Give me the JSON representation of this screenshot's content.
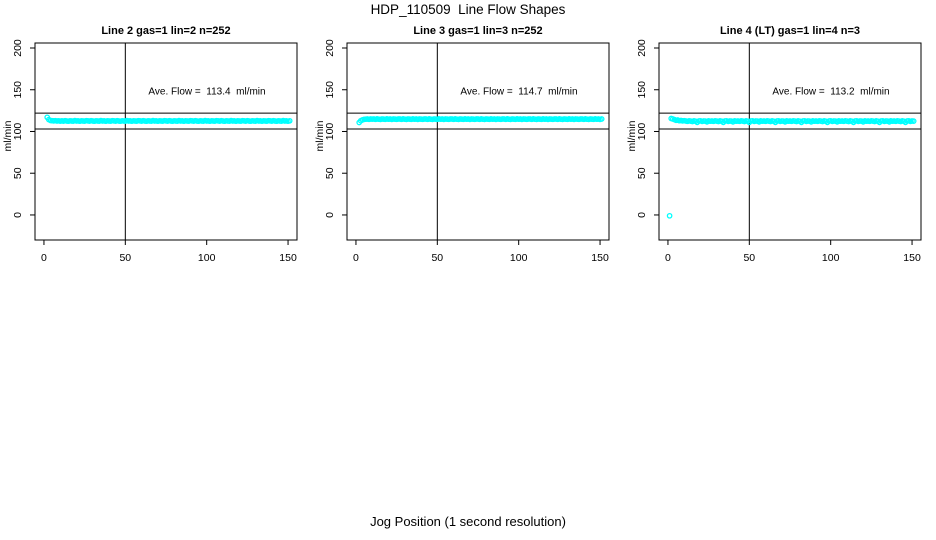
{
  "title": "HDP_110509  Line Flow Shapes",
  "xlabel": "Jog Position (1 second resolution)",
  "colors": {
    "marker": "#00FFFF",
    "axis": "#000000",
    "background": "#FFFFFF"
  },
  "chart_data": [
    {
      "type": "scatter",
      "title": "Line 2 gas=1 lin=2 n=252",
      "gas": 1,
      "lin": 2,
      "n": 252,
      "annotation": "Ave. Flow =  113.4  ml/min",
      "ave_flow_ml_min": 113.4,
      "ylabel": "ml/min",
      "xticks": [
        0,
        50,
        100,
        150
      ],
      "yticks": [
        0,
        50,
        100,
        150,
        200
      ],
      "xlim": [
        -5.5,
        155.5
      ],
      "ylim": [
        -30,
        206
      ],
      "vline_x": 50,
      "hlines_y": [
        122,
        103
      ],
      "marker_color": "#00FFFF",
      "x0": 2,
      "dx": 1,
      "y": [
        117,
        114.2,
        113.2,
        112.9,
        112.7,
        112.9,
        112.5,
        112.8,
        112.4,
        112.7,
        112.4,
        112.9,
        112.5,
        112.3,
        112.8,
        112.6,
        112.4,
        113,
        112.5,
        112.7,
        112.3,
        112.8,
        112.6,
        112.4,
        112.9,
        112.7,
        112.4,
        112.9,
        112.5,
        112.3,
        112.8,
        112.6,
        112.4,
        113,
        112.5,
        112.7,
        112.3,
        112.8,
        112.6,
        112.4,
        112.9,
        112.7,
        112.4,
        112.9,
        112.5,
        112.3,
        112.8,
        112.6,
        112.4,
        113,
        112.5,
        112.7,
        112.3,
        112.8,
        112.6,
        112.4,
        112.9,
        112.7,
        112.4,
        112.9,
        112.5,
        112.3,
        112.8,
        112.6,
        112.4,
        113,
        112.5,
        112.7,
        112.3,
        112.8,
        112.6,
        112.4,
        112.9,
        112.7,
        112.4,
        112.9,
        112.5,
        112.3,
        112.8,
        112.6,
        112.4,
        113,
        112.5,
        112.7,
        112.3,
        112.8,
        112.6,
        112.4,
        112.9,
        112.7,
        112.4,
        112.9,
        112.5,
        112.3,
        112.8,
        112.6,
        112.4,
        113,
        112.5,
        112.7,
        112.3,
        112.8,
        112.6,
        112.4,
        112.9,
        112.7,
        112.4,
        112.9,
        112.5,
        112.3,
        112.8,
        112.6,
        112.4,
        113,
        112.5,
        112.7,
        112.3,
        112.8,
        112.6,
        112.4,
        112.9,
        112.7,
        112.4,
        112.9,
        112.5,
        112.3,
        112.8,
        112.6,
        112.4,
        113,
        112.5,
        112.7,
        112.3,
        112.8,
        112.6,
        112.4,
        112.9,
        112.7,
        112.4,
        112.9,
        112.5,
        112.3,
        112.8,
        112.6,
        112.4,
        113,
        112.5,
        112.7,
        112.3,
        112.8
      ],
      "extra_points": []
    },
    {
      "type": "scatter",
      "title": "Line 3 gas=1 lin=3 n=252",
      "gas": 1,
      "lin": 3,
      "n": 252,
      "annotation": "Ave. Flow =  114.7  ml/min",
      "ave_flow_ml_min": 114.7,
      "ylabel": "ml/min",
      "xticks": [
        0,
        50,
        100,
        150
      ],
      "yticks": [
        0,
        50,
        100,
        150,
        200
      ],
      "xlim": [
        -5.5,
        155.5
      ],
      "ylim": [
        -30,
        206
      ],
      "vline_x": 50,
      "hlines_y": [
        122,
        103
      ],
      "marker_color": "#00FFFF",
      "x0": 2,
      "dx": 1,
      "y": [
        110.8,
        112.9,
        114,
        114.5,
        114.7,
        114.9,
        114.6,
        115,
        114.8,
        114.9,
        114.6,
        115.1,
        114.7,
        114.5,
        115,
        114.8,
        114.6,
        115.1,
        114.7,
        114.9,
        114.5,
        115,
        114.8,
        114.6,
        114.9,
        114.9,
        114.6,
        115.1,
        114.7,
        114.5,
        115,
        114.8,
        114.6,
        115.1,
        114.7,
        114.9,
        114.5,
        115,
        114.8,
        114.6,
        114.9,
        114.9,
        114.6,
        115.1,
        114.7,
        114.5,
        115,
        114.8,
        114.6,
        115.1,
        114.7,
        114.9,
        114.5,
        115,
        114.8,
        114.6,
        114.9,
        114.9,
        114.6,
        115.1,
        114.7,
        114.5,
        115,
        114.8,
        114.6,
        115.1,
        114.7,
        114.9,
        114.5,
        115,
        114.8,
        114.6,
        114.9,
        114.9,
        114.6,
        115.1,
        114.7,
        114.5,
        115,
        114.8,
        114.6,
        115.1,
        114.7,
        114.9,
        114.5,
        115,
        114.8,
        114.6,
        114.9,
        114.9,
        114.6,
        115.1,
        114.7,
        114.5,
        115,
        114.8,
        114.6,
        115.1,
        114.7,
        114.9,
        114.5,
        115,
        114.8,
        114.6,
        114.9,
        114.9,
        114.6,
        115.1,
        114.7,
        114.5,
        115,
        114.8,
        114.6,
        115.1,
        114.7,
        114.9,
        114.5,
        115,
        114.8,
        114.6,
        114.9,
        114.9,
        114.6,
        115.1,
        114.7,
        114.5,
        115,
        114.8,
        114.6,
        115.1,
        114.7,
        114.9,
        114.5,
        115,
        114.8,
        114.6,
        114.9,
        114.9,
        114.6,
        115.1,
        114.7,
        114.5,
        115,
        114.8,
        114.6,
        115.1,
        114.7,
        114.9,
        114.5,
        115
      ],
      "extra_points": []
    },
    {
      "type": "scatter",
      "title": "Line 4 (LT) gas=1 lin=4 n=3",
      "gas": 1,
      "lin": 4,
      "n": 3,
      "annotation": "Ave. Flow =  113.2  ml/min",
      "ave_flow_ml_min": 113.2,
      "ylabel": "ml/min",
      "xticks": [
        0,
        50,
        100,
        150
      ],
      "yticks": [
        0,
        50,
        100,
        150,
        200
      ],
      "xlim": [
        -5.5,
        155.5
      ],
      "ylim": [
        -30,
        206
      ],
      "vline_x": 50,
      "hlines_y": [
        122,
        103
      ],
      "marker_color": "#00FFFF",
      "x0": 2,
      "dx": 1,
      "y": [
        115.5,
        115,
        114.2,
        113.4,
        113.8,
        112.9,
        113.2,
        112.7,
        112.9,
        112.6,
        112.2,
        112.8,
        112.4,
        111.9,
        112.7,
        112.3,
        110.9,
        112.5,
        112.8,
        112.1,
        112.6,
        112.4,
        111.5,
        112.7,
        112.3,
        112.6,
        112.2,
        112.8,
        112.4,
        111.9,
        112.7,
        112.3,
        110.9,
        112.5,
        112.8,
        112.1,
        112.6,
        112.4,
        111.5,
        112.7,
        112.3,
        112.6,
        112.2,
        112.8,
        112.4,
        111.9,
        112.7,
        112.3,
        110.9,
        112.5,
        112.8,
        112.1,
        112.6,
        112.4,
        111.5,
        112.7,
        112.3,
        112.6,
        112.2,
        112.8,
        112.4,
        111.9,
        112.7,
        112.3,
        110.9,
        112.5,
        112.8,
        112.1,
        112.6,
        112.4,
        111.5,
        112.7,
        112.3,
        112.6,
        112.2,
        112.8,
        112.4,
        111.9,
        112.7,
        112.3,
        110.9,
        112.5,
        112.8,
        112.1,
        112.6,
        112.4,
        111.5,
        112.7,
        112.3,
        112.6,
        112.2,
        112.8,
        112.4,
        111.9,
        112.7,
        112.3,
        110.9,
        112.5,
        112.8,
        112.1,
        112.6,
        112.4,
        111.5,
        112.7,
        112.3,
        112.6,
        112.2,
        112.8,
        112.4,
        111.9,
        112.7,
        112.3,
        110.9,
        112.5,
        112.8,
        112.1,
        112.6,
        112.4,
        111.5,
        112.7,
        112.3,
        112.6,
        112.2,
        112.8,
        112.4,
        111.9,
        112.7,
        112.3,
        110.9,
        112.5,
        112.8,
        112.1,
        112.6,
        112.4,
        111.5,
        112.7,
        112.3,
        112.6,
        112.2,
        112.8,
        112.4,
        111.9,
        112.7,
        112.3,
        110.9,
        112.5,
        112.8,
        112.1,
        112.6,
        112.4
      ],
      "extra_points": [
        [
          1,
          -1
        ]
      ]
    }
  ]
}
